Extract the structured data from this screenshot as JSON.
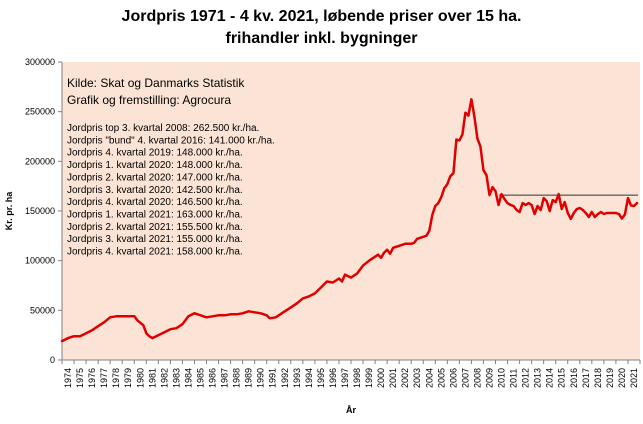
{
  "chart_data": {
    "type": "line",
    "title_line1": "Jordpris 1971 - 4 kv. 2021, løbende priser over 15 ha.",
    "title_line2": "frihandler inkl. bygninger",
    "xlabel": "År",
    "ylabel": "Kr. pr. ha",
    "ylim": [
      0,
      300000
    ],
    "y_ticks": [
      0,
      50000,
      100000,
      150000,
      200000,
      250000,
      300000
    ],
    "x_tick_labels": [
      "1974",
      "1975",
      "1976",
      "1977",
      "1978",
      "1979",
      "1980",
      "1981",
      "1982",
      "1983",
      "1984",
      "1985",
      "1986",
      "1987",
      "1988",
      "1989",
      "1990",
      "1991",
      "1992",
      "1993",
      "1994",
      "1995",
      "1996",
      "1997",
      "1998",
      "1999",
      "2000",
      "2001",
      "2002",
      "2003",
      "2004",
      "2005",
      "2006",
      "2007",
      "2008",
      "2009",
      "2010",
      "2011",
      "2012",
      "2013",
      "2014",
      "2015",
      "2016",
      "2017",
      "2018",
      "2019",
      "2020",
      "2021"
    ],
    "plot_background": "#fbe4d5",
    "series_color": "#e00000",
    "reference_line": {
      "value": 166000,
      "from_year": 2010.3,
      "color": "#333333"
    },
    "source_lines": [
      "Kilde: Skat og Danmarks Statistik",
      "Grafik og fremstilling: Agrocura"
    ],
    "notes": [
      "Jordpris top 3. kvartal 2008: 262.500 kr./ha.",
      "Jordpris \"bund\" 4. kvartal 2016: 141.000 kr./ha.",
      "Jordpris 4. kvartal 2019: 148.000 kr./ha.",
      "Jordpris 1. kvartal 2020: 148.000 kr./ha.",
      "Jordpris 2. kvartal 2020: 147.000 kr./ha.",
      "Jordpris 3. kvartal 2020: 142.500 kr./ha.",
      "Jordpris 4. kvartal 2020: 146.500 kr./ha.",
      "Jordpris 1. kvartal 2021: 163.000 kr./ha.",
      "Jordpris 2. kvartal 2021: 155.500 kr./ha.",
      "Jordpris 3. kvartal 2021: 155.000 kr./ha.",
      "Jordpris 4. kvartal 2021: 158.000 kr./ha."
    ],
    "series": [
      {
        "points": [
          [
            1974.0,
            19000
          ],
          [
            1974.5,
            22000
          ],
          [
            1975.0,
            24000
          ],
          [
            1975.5,
            24000
          ],
          [
            1976.0,
            27000
          ],
          [
            1976.5,
            30000
          ],
          [
            1977.0,
            34000
          ],
          [
            1977.5,
            38000
          ],
          [
            1978.0,
            43000
          ],
          [
            1978.5,
            44000
          ],
          [
            1979.0,
            44000
          ],
          [
            1979.5,
            44000
          ],
          [
            1980.0,
            44000
          ],
          [
            1980.25,
            40000
          ],
          [
            1980.75,
            35000
          ],
          [
            1981.0,
            27000
          ],
          [
            1981.25,
            24000
          ],
          [
            1981.5,
            22000
          ],
          [
            1982.0,
            25000
          ],
          [
            1982.5,
            28000
          ],
          [
            1983.0,
            31000
          ],
          [
            1983.5,
            32000
          ],
          [
            1984.0,
            36000
          ],
          [
            1984.5,
            44000
          ],
          [
            1985.0,
            47000
          ],
          [
            1985.5,
            45000
          ],
          [
            1986.0,
            43000
          ],
          [
            1986.5,
            44000
          ],
          [
            1987.0,
            45000
          ],
          [
            1987.5,
            45000
          ],
          [
            1988.0,
            46000
          ],
          [
            1988.5,
            46000
          ],
          [
            1989.0,
            47000
          ],
          [
            1989.5,
            49000
          ],
          [
            1990.0,
            48000
          ],
          [
            1990.5,
            47000
          ],
          [
            1991.0,
            45000
          ],
          [
            1991.25,
            42000
          ],
          [
            1991.75,
            43000
          ],
          [
            1992.0,
            45000
          ],
          [
            1992.5,
            49000
          ],
          [
            1993.0,
            53000
          ],
          [
            1993.5,
            57000
          ],
          [
            1994.0,
            62000
          ],
          [
            1994.5,
            64000
          ],
          [
            1995.0,
            67000
          ],
          [
            1995.5,
            73000
          ],
          [
            1996.0,
            79000
          ],
          [
            1996.5,
            78000
          ],
          [
            1997.0,
            82000
          ],
          [
            1997.25,
            79000
          ],
          [
            1997.5,
            86000
          ],
          [
            1998.0,
            83000
          ],
          [
            1998.5,
            87000
          ],
          [
            1999.0,
            95000
          ],
          [
            1999.5,
            100000
          ],
          [
            2000.0,
            104000
          ],
          [
            2000.25,
            106000
          ],
          [
            2000.5,
            103000
          ],
          [
            2000.75,
            108000
          ],
          [
            2001.0,
            111000
          ],
          [
            2001.25,
            107000
          ],
          [
            2001.5,
            113000
          ],
          [
            2002.0,
            115000
          ],
          [
            2002.5,
            117000
          ],
          [
            2003.0,
            117000
          ],
          [
            2003.25,
            118000
          ],
          [
            2003.5,
            122000
          ],
          [
            2004.0,
            124000
          ],
          [
            2004.25,
            125000
          ],
          [
            2004.5,
            130000
          ],
          [
            2004.75,
            146000
          ],
          [
            2005.0,
            155000
          ],
          [
            2005.25,
            158000
          ],
          [
            2005.5,
            164000
          ],
          [
            2005.75,
            173000
          ],
          [
            2006.0,
            177000
          ],
          [
            2006.25,
            185000
          ],
          [
            2006.5,
            188000
          ],
          [
            2006.75,
            222000
          ],
          [
            2007.0,
            221000
          ],
          [
            2007.25,
            227000
          ],
          [
            2007.5,
            249000
          ],
          [
            2007.75,
            246000
          ],
          [
            2008.0,
            262500
          ],
          [
            2008.25,
            245000
          ],
          [
            2008.5,
            223000
          ],
          [
            2008.75,
            215000
          ],
          [
            2009.0,
            191000
          ],
          [
            2009.25,
            186000
          ],
          [
            2009.5,
            166000
          ],
          [
            2009.75,
            174000
          ],
          [
            2010.0,
            170000
          ],
          [
            2010.25,
            156000
          ],
          [
            2010.5,
            167000
          ],
          [
            2010.75,
            162000
          ],
          [
            2011.0,
            158000
          ],
          [
            2011.25,
            156000
          ],
          [
            2011.5,
            155000
          ],
          [
            2011.75,
            151000
          ],
          [
            2012.0,
            149000
          ],
          [
            2012.25,
            158000
          ],
          [
            2012.5,
            156000
          ],
          [
            2012.75,
            158000
          ],
          [
            2013.0,
            156000
          ],
          [
            2013.25,
            147000
          ],
          [
            2013.5,
            155000
          ],
          [
            2013.75,
            151000
          ],
          [
            2014.0,
            163000
          ],
          [
            2014.25,
            160000
          ],
          [
            2014.5,
            150000
          ],
          [
            2014.75,
            161000
          ],
          [
            2015.0,
            159000
          ],
          [
            2015.25,
            167000
          ],
          [
            2015.5,
            152000
          ],
          [
            2015.75,
            159000
          ],
          [
            2016.0,
            148000
          ],
          [
            2016.25,
            142000
          ],
          [
            2016.5,
            148000
          ],
          [
            2016.75,
            152000
          ],
          [
            2017.0,
            153000
          ],
          [
            2017.25,
            151000
          ],
          [
            2017.5,
            148000
          ],
          [
            2017.75,
            144000
          ],
          [
            2018.0,
            149000
          ],
          [
            2018.25,
            144000
          ],
          [
            2018.5,
            147000
          ],
          [
            2018.75,
            149000
          ],
          [
            2019.0,
            147000
          ],
          [
            2019.25,
            148000
          ],
          [
            2019.5,
            148000
          ],
          [
            2019.75,
            148000
          ],
          [
            2020.0,
            148000
          ],
          [
            2020.25,
            147000
          ],
          [
            2020.5,
            142500
          ],
          [
            2020.75,
            146500
          ],
          [
            2021.0,
            163000
          ],
          [
            2021.25,
            155500
          ],
          [
            2021.5,
            155000
          ],
          [
            2021.75,
            158000
          ]
        ]
      }
    ]
  }
}
